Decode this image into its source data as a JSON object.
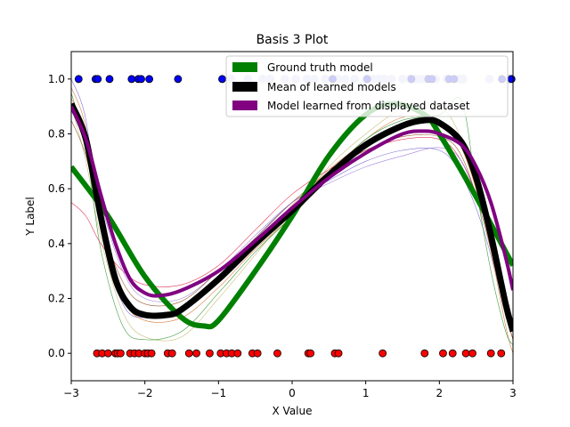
{
  "chart_data": {
    "type": "line",
    "title": "Basis 3 Plot",
    "xlabel": "X Value",
    "ylabel": "Y Label",
    "xlim": [
      -3,
      3
    ],
    "ylim": [
      -0.1,
      1.1
    ],
    "xticks": [
      -3,
      -2,
      -1,
      0,
      1,
      2,
      3
    ],
    "yticks": [
      0.0,
      0.2,
      0.4,
      0.6,
      0.8,
      1.0
    ],
    "xtick_labels": [
      "−3",
      "−2",
      "−1",
      "0",
      "1",
      "2",
      "3"
    ],
    "ytick_labels": [
      "0.0",
      "0.2",
      "0.4",
      "0.6",
      "0.8",
      "1.0"
    ],
    "legend_position": "top-right",
    "legend": [
      {
        "label": "Ground truth model",
        "color": "#008000"
      },
      {
        "label": "Mean of learned models",
        "color": "#000000"
      },
      {
        "label": "Model learned from displayed dataset",
        "color": "#800080"
      }
    ],
    "series": [
      {
        "name": "Ground truth model",
        "color": "#008000",
        "x": [
          -3.0,
          -2.5,
          -2.0,
          -1.5,
          -1.2,
          -1.0,
          -0.5,
          0.0,
          0.5,
          1.0,
          1.4,
          1.8,
          2.0,
          2.5,
          3.0
        ],
        "y": [
          0.68,
          0.5,
          0.28,
          0.13,
          0.1,
          0.12,
          0.3,
          0.5,
          0.72,
          0.87,
          0.91,
          0.87,
          0.8,
          0.57,
          0.32
        ]
      },
      {
        "name": "Mean of learned models",
        "color": "#000000",
        "x": [
          -3.0,
          -2.8,
          -2.6,
          -2.4,
          -2.2,
          -2.0,
          -1.7,
          -1.5,
          -1.0,
          -0.5,
          0.0,
          0.5,
          1.0,
          1.5,
          1.8,
          2.0,
          2.3,
          2.5,
          2.7,
          2.9,
          3.0
        ],
        "y": [
          0.91,
          0.78,
          0.5,
          0.27,
          0.17,
          0.14,
          0.14,
          0.16,
          0.27,
          0.4,
          0.52,
          0.65,
          0.76,
          0.83,
          0.85,
          0.84,
          0.77,
          0.64,
          0.43,
          0.18,
          0.08
        ]
      },
      {
        "name": "Model learned from displayed dataset",
        "color": "#800080",
        "x": [
          -3.0,
          -2.8,
          -2.6,
          -2.4,
          -2.2,
          -2.0,
          -1.8,
          -1.5,
          -1.0,
          -0.5,
          0.0,
          0.5,
          1.0,
          1.5,
          1.8,
          2.0,
          2.3,
          2.5,
          2.7,
          2.9,
          3.0
        ],
        "y": [
          0.9,
          0.78,
          0.58,
          0.4,
          0.27,
          0.22,
          0.21,
          0.23,
          0.3,
          0.41,
          0.53,
          0.64,
          0.73,
          0.8,
          0.81,
          0.8,
          0.76,
          0.68,
          0.55,
          0.35,
          0.23
        ]
      }
    ],
    "thin_model_lines": [
      {
        "color": "#6a5acd",
        "x": [
          -3.0,
          -2.8,
          -2.6,
          -2.3,
          -2.0,
          -1.5,
          -1.0,
          -0.5,
          0.0,
          0.5,
          1.0,
          1.5,
          2.0,
          2.3,
          2.6,
          2.9,
          3.0
        ],
        "y": [
          1.0,
          0.85,
          0.45,
          0.18,
          0.13,
          0.17,
          0.28,
          0.42,
          0.55,
          0.63,
          0.7,
          0.74,
          0.74,
          0.65,
          0.45,
          0.15,
          0.05
        ]
      },
      {
        "color": "#d2691e",
        "x": [
          -3.0,
          -2.8,
          -2.6,
          -2.3,
          -2.0,
          -1.5,
          -1.0,
          -0.5,
          0.0,
          0.5,
          1.0,
          1.5,
          2.0,
          2.3,
          2.6,
          2.9,
          3.0
        ],
        "y": [
          0.97,
          0.82,
          0.45,
          0.2,
          0.12,
          0.13,
          0.24,
          0.38,
          0.5,
          0.65,
          0.78,
          0.86,
          0.85,
          0.75,
          0.5,
          0.1,
          0.0
        ]
      },
      {
        "color": "#bdb76b",
        "x": [
          -3.0,
          -2.8,
          -2.6,
          -2.3,
          -2.0,
          -1.5,
          -1.0,
          -0.5,
          0.0,
          0.5,
          1.0,
          1.5,
          2.0,
          2.3,
          2.6,
          2.9,
          3.0
        ],
        "y": [
          0.9,
          0.7,
          0.42,
          0.15,
          0.06,
          0.06,
          0.2,
          0.36,
          0.52,
          0.68,
          0.8,
          0.89,
          0.9,
          0.78,
          0.52,
          0.15,
          0.05
        ]
      },
      {
        "color": "#228b22",
        "x": [
          -3.0,
          -2.8,
          -2.6,
          -2.3,
          -2.0,
          -1.5,
          -1.0,
          -0.5,
          0.0,
          0.5,
          1.0,
          1.5,
          2.0,
          2.3,
          2.5,
          2.7,
          2.9,
          3.0
        ],
        "y": [
          0.95,
          0.75,
          0.38,
          0.1,
          0.05,
          0.08,
          0.22,
          0.37,
          0.5,
          0.65,
          0.78,
          0.85,
          0.87,
          0.92,
          0.6,
          0.3,
          0.08,
          0.03
        ]
      },
      {
        "color": "#dc143c",
        "x": [
          -3.0,
          -2.8,
          -2.6,
          -2.3,
          -2.0,
          -1.5,
          -1.0,
          -0.5,
          0.0,
          0.5,
          1.0,
          1.5,
          2.0,
          2.3,
          2.6,
          2.9,
          3.0
        ],
        "y": [
          0.55,
          0.5,
          0.4,
          0.3,
          0.25,
          0.25,
          0.32,
          0.45,
          0.58,
          0.67,
          0.74,
          0.78,
          0.78,
          0.7,
          0.5,
          0.2,
          0.1
        ]
      },
      {
        "color": "#9370db",
        "x": [
          -3.0,
          -2.8,
          -2.6,
          -2.3,
          -2.0,
          -1.5,
          -1.0,
          -0.5,
          0.0,
          0.5,
          1.0,
          1.5,
          2.0,
          2.3,
          2.6,
          2.9,
          3.0
        ],
        "y": [
          0.88,
          0.8,
          0.55,
          0.3,
          0.2,
          0.2,
          0.3,
          0.43,
          0.55,
          0.62,
          0.68,
          0.72,
          0.75,
          0.7,
          0.5,
          0.18,
          0.08
        ]
      },
      {
        "color": "#ff7f50",
        "x": [
          -3.0,
          -2.8,
          -2.6,
          -2.3,
          -2.0,
          -1.5,
          -1.0,
          -0.5,
          0.0,
          0.5,
          1.0,
          1.5,
          2.0,
          2.3,
          2.6,
          2.9,
          3.0
        ],
        "y": [
          0.93,
          0.8,
          0.5,
          0.22,
          0.14,
          0.16,
          0.26,
          0.4,
          0.54,
          0.67,
          0.77,
          0.83,
          0.84,
          0.75,
          0.5,
          0.15,
          0.05
        ]
      },
      {
        "color": "#8b4513",
        "x": [
          -3.0,
          -2.8,
          -2.6,
          -2.3,
          -2.0,
          -1.5,
          -1.0,
          -0.5,
          0.0,
          0.5,
          1.0,
          1.5,
          2.0,
          2.3,
          2.6,
          2.9,
          3.0
        ],
        "y": [
          0.85,
          0.72,
          0.48,
          0.26,
          0.18,
          0.19,
          0.3,
          0.42,
          0.55,
          0.66,
          0.74,
          0.79,
          0.79,
          0.72,
          0.48,
          0.15,
          0.05
        ]
      }
    ],
    "points_class0": {
      "color": "#ff0000",
      "y": 0,
      "x": [
        -2.65,
        -2.58,
        -2.5,
        -2.4,
        -2.37,
        -2.33,
        -2.2,
        -2.14,
        -2.08,
        -2.0,
        -1.96,
        -1.91,
        -1.69,
        -1.63,
        -1.4,
        -1.3,
        -1.12,
        -0.97,
        -0.89,
        -0.82,
        -0.74,
        -0.54,
        -0.47,
        -0.2,
        0.22,
        0.25,
        0.58,
        0.63,
        1.23,
        1.8,
        2.05,
        2.18,
        2.36,
        2.45,
        2.7,
        2.84
      ]
    },
    "points_class1": {
      "color": "#0000ff",
      "y": 1,
      "x": [
        -2.9,
        -2.67,
        -2.64,
        -2.48,
        -2.18,
        -2.09,
        -2.05,
        -1.94,
        -1.55,
        -0.95,
        0.55,
        1.02,
        1.62,
        1.85,
        1.9,
        2.13,
        2.2,
        2.85,
        2.98
      ]
    },
    "points_faded": {
      "color": "#c8c8f0",
      "y": 1,
      "x": [
        -0.83,
        -0.6,
        -0.4,
        -0.3,
        -0.1,
        0.05,
        0.2,
        0.3,
        0.45,
        0.62,
        0.72,
        0.85,
        1.0,
        1.1,
        1.18,
        1.25,
        1.35,
        1.5,
        1.6,
        1.68,
        1.75,
        1.82,
        1.95,
        2.1,
        2.27,
        2.32,
        2.68,
        2.95
      ]
    }
  }
}
